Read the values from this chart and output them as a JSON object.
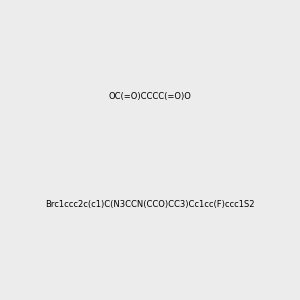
{
  "smiles_drug": "Brc1ccc2c(c1)C(N3CCN(CCO)CC3)Cc1cc(F)ccc1S2",
  "smiles_acid": "OC(=O)CCCC(=O)O",
  "background_color": "#ececec",
  "fig_width": 3.0,
  "fig_height": 3.0,
  "dpi": 100
}
